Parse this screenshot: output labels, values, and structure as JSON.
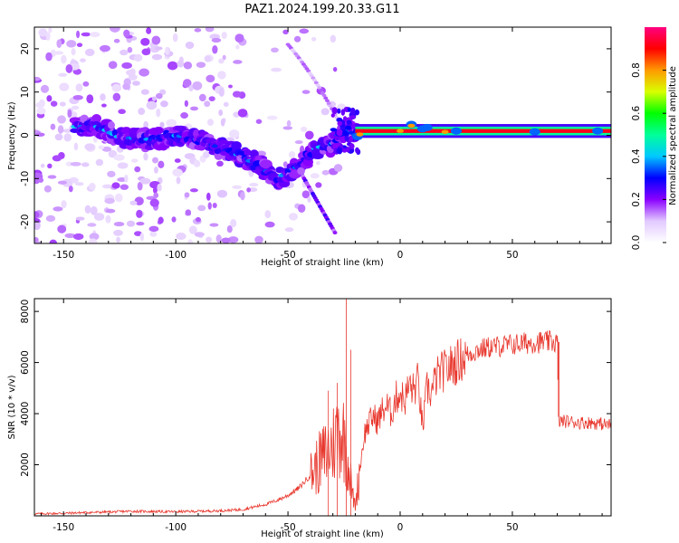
{
  "figure": {
    "title": "PAZ1.2024.199.20.33.G11"
  },
  "chart_data": [
    {
      "type": "heatmap",
      "xlabel": "Height of straight line (km)",
      "ylabel": "Frequency (Hz)",
      "xlim": [
        -163,
        94
      ],
      "ylim": [
        -25,
        25
      ],
      "xticks": [
        -150,
        -100,
        -50,
        0,
        50
      ],
      "yticks": [
        -20,
        -10,
        0,
        10,
        20
      ],
      "colorbar": {
        "label": "Normalized spectral amplitude",
        "range": [
          0,
          1
        ],
        "ticks": [
          0.0,
          0.2,
          0.4,
          0.6,
          0.8
        ],
        "colormap": [
          "#ffffff",
          "#e2c9ff",
          "#8a00ff",
          "#0000ff",
          "#00c8ff",
          "#00ff9a",
          "#00ff00",
          "#d8ff00",
          "#ff9a00",
          "#ff0000",
          "#ff0080"
        ]
      },
      "features": {
        "main_track": [
          [
            -135,
            2
          ],
          [
            -125,
            -0.5
          ],
          [
            -110,
            -1
          ],
          [
            -100,
            0
          ],
          [
            -90,
            -1
          ],
          [
            -80,
            -3
          ],
          [
            -70,
            -5
          ],
          [
            -62,
            -7.5
          ],
          [
            -55,
            -10
          ],
          [
            -45,
            -7
          ],
          [
            -38,
            -3
          ],
          [
            -30,
            -2
          ],
          [
            -25,
            2
          ],
          [
            -20,
            0
          ],
          [
            -10,
            1
          ],
          [
            0,
            1
          ],
          [
            20,
            1
          ],
          [
            50,
            1
          ],
          [
            90,
            1
          ]
        ],
        "steady_tone_hz": 1,
        "steady_tone_start_km": -20
      }
    },
    {
      "type": "line",
      "xlabel": "Height of straight line (km)",
      "ylabel": "SNR (10 * v/v)",
      "xlim": [
        -163,
        94
      ],
      "ylim": [
        0,
        8500
      ],
      "xticks": [
        -150,
        -100,
        -50,
        0,
        50
      ],
      "yticks": [
        2000,
        4000,
        6000,
        8000
      ],
      "series": [
        {
          "color": "#e8382e",
          "x": [
            -163,
            -150,
            -140,
            -130,
            -120,
            -110,
            -100,
            -90,
            -80,
            -70,
            -65,
            -60,
            -55,
            -50,
            -45,
            -40,
            -35,
            -30,
            -27,
            -25,
            -23,
            -21,
            -20,
            -18,
            -16,
            -14,
            -12,
            -10,
            -8,
            -6,
            -4,
            -2,
            0,
            2,
            4,
            6,
            8,
            10,
            12,
            14,
            16,
            18,
            20,
            25,
            30,
            35,
            40,
            45,
            50,
            55,
            60,
            65,
            70,
            70.5,
            75,
            80,
            85,
            90,
            94
          ],
          "y": [
            80,
            100,
            130,
            150,
            180,
            170,
            160,
            180,
            200,
            250,
            350,
            450,
            600,
            800,
            1100,
            1600,
            2200,
            2800,
            3400,
            3000,
            2000,
            700,
            400,
            1800,
            3200,
            3600,
            3900,
            3700,
            4100,
            4300,
            4000,
            4600,
            4800,
            4500,
            5100,
            4900,
            5300,
            3400,
            5000,
            4800,
            5400,
            5600,
            5700,
            6000,
            6300,
            6500,
            6600,
            6650,
            6700,
            6750,
            6800,
            6800,
            6800,
            3700,
            3700,
            3650,
            3650,
            3600,
            3550
          ]
        }
      ],
      "spikes": [
        [
          -32,
          4900
        ],
        [
          -28,
          5200
        ],
        [
          -24,
          8500
        ],
        [
          -22,
          6500
        ]
      ]
    }
  ]
}
